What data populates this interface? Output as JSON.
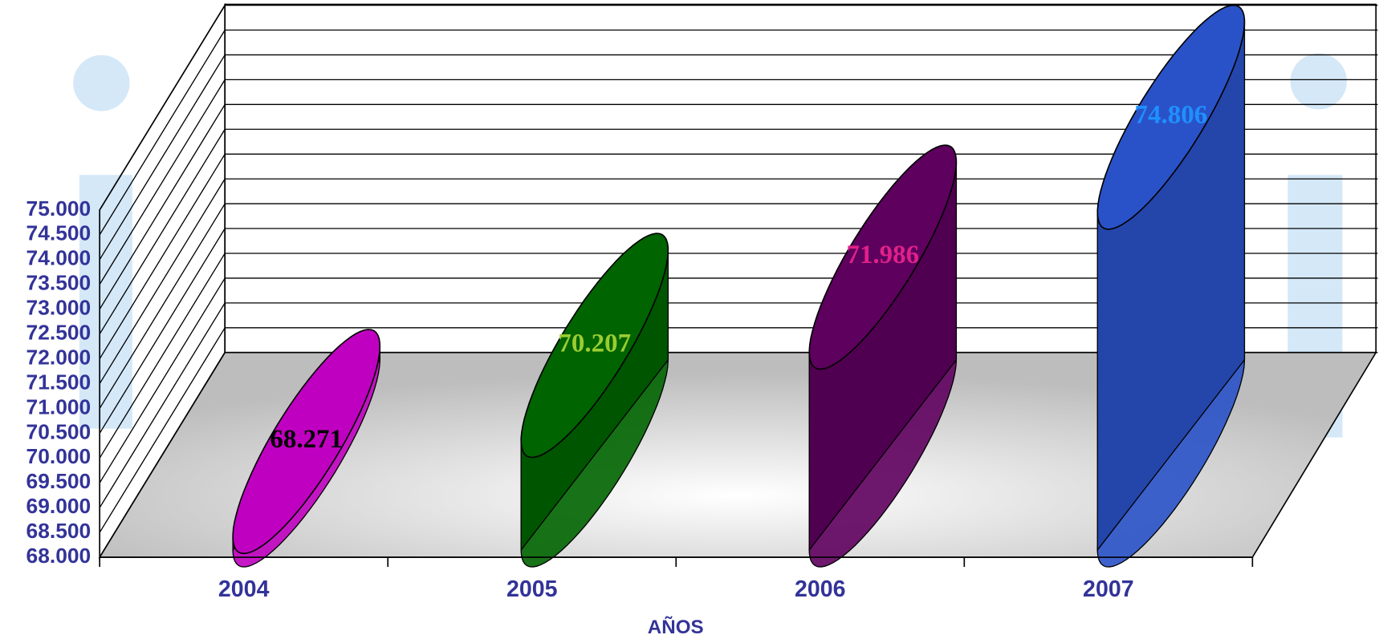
{
  "chart_data": {
    "type": "bar3d",
    "x_label": "AÑOS",
    "categories": [
      "2004",
      "2005",
      "2006",
      "2007"
    ],
    "values": [
      68271,
      70207,
      71986,
      74806
    ],
    "value_labels": [
      "68.271",
      "70.207",
      "71.986",
      "74.806"
    ],
    "colors": [
      "#c000c0",
      "#006400",
      "#5e005e",
      "#2a52c8"
    ],
    "label_colors": [
      "#000000",
      "#9acd32",
      "#e0208a",
      "#1e90ff"
    ],
    "ylim": [
      68000,
      75000
    ],
    "yticks": [
      {
        "value": 68000,
        "label": "68.000"
      },
      {
        "value": 68500,
        "label": "68.500"
      },
      {
        "value": 69000,
        "label": "69.000"
      },
      {
        "value": 69500,
        "label": "69.500"
      },
      {
        "value": 70000,
        "label": "70.000"
      },
      {
        "value": 70500,
        "label": "70.500"
      },
      {
        "value": 71000,
        "label": "71.000"
      },
      {
        "value": 71500,
        "label": "71.500"
      },
      {
        "value": 72000,
        "label": "72.000"
      },
      {
        "value": 72500,
        "label": "72.500"
      },
      {
        "value": 73000,
        "label": "73.000"
      },
      {
        "value": 73500,
        "label": "73.500"
      },
      {
        "value": 74000,
        "label": "74.000"
      },
      {
        "value": 74500,
        "label": "74.500"
      },
      {
        "value": 75000,
        "label": "75.000"
      }
    ],
    "grid": true
  }
}
